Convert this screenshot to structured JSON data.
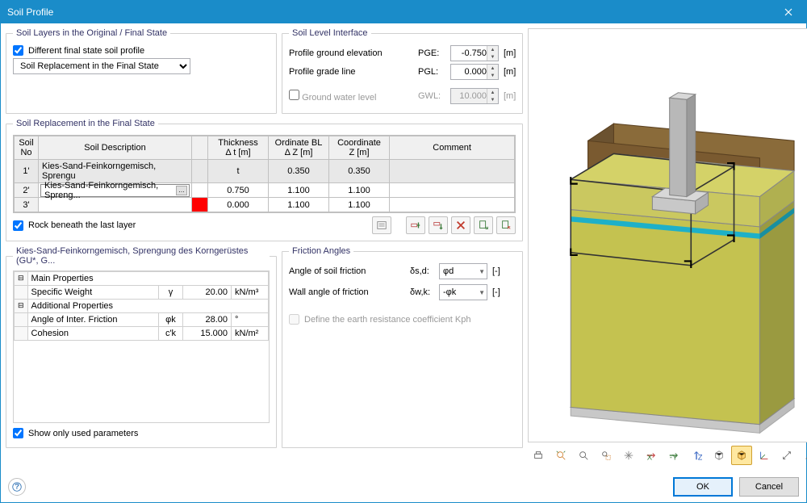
{
  "window": {
    "title": "Soil Profile"
  },
  "soil_layers_group": {
    "legend": "Soil Layers in the Original / Final State",
    "different_checkbox": "Different final state soil profile",
    "different_checked": true,
    "combo_value": "Soil Replacement in the Final State"
  },
  "soil_level_group": {
    "legend": "Soil Level Interface",
    "pge_label": "Profile ground elevation",
    "pge_abbr": "PGE:",
    "pge_value": "-0.750",
    "pge_unit": "[m]",
    "pgl_label": "Profile grade line",
    "pgl_abbr": "PGL:",
    "pgl_value": "0.000",
    "pgl_unit": "[m]",
    "gwl_checkbox": "Ground water level",
    "gwl_checked": false,
    "gwl_abbr": "GWL:",
    "gwl_value": "10.000",
    "gwl_unit": "[m]"
  },
  "replacement_group": {
    "legend": "Soil Replacement in the Final State",
    "headers": {
      "no_l1": "Soil",
      "no_l2": "No",
      "desc": "Soil Description",
      "thick_l1": "Thickness",
      "thick_l2": "Δ t [m]",
      "ord_l1": "Ordinate BL",
      "ord_l2": "Δ Z [m]",
      "coord_l1": "Coordinate",
      "coord_l2": "Z [m]",
      "comment": "Comment"
    },
    "rows": [
      {
        "no": "1'",
        "desc": "Kies-Sand-Feinkorngemisch, Sprengu",
        "color": "",
        "thick": "t",
        "ord": "0.350",
        "coord": "0.350",
        "comment": "",
        "selected": true
      },
      {
        "no": "2'",
        "desc": "Kies-Sand-Feinkorngemisch, Spreng...",
        "color": "",
        "thick": "0.750",
        "ord": "1.100",
        "coord": "1.100",
        "comment": "",
        "editing": true
      },
      {
        "no": "3'",
        "desc": "",
        "color": "#ff0000",
        "thick": "0.000",
        "ord": "1.100",
        "coord": "1.100",
        "comment": ""
      }
    ],
    "rock_checkbox": "Rock beneath the last layer",
    "rock_checked": true
  },
  "props_group": {
    "legend": "Kies-Sand-Feinkorngemisch, Sprengung des Korngerüstes (GU*, G...",
    "main_hdr": "Main Properties",
    "specific_weight": {
      "label": "Specific Weight",
      "sym": "γ",
      "val": "20.00",
      "unit": "kN/m³"
    },
    "add_hdr": "Additional Properties",
    "angle_friction": {
      "label": "Angle of Inter. Friction",
      "sym": "φk",
      "val": "28.00",
      "unit": "°"
    },
    "cohesion": {
      "label": "Cohesion",
      "sym": "c'k",
      "val": "15.000",
      "unit": "kN/m²"
    },
    "show_only_checkbox": "Show only used parameters",
    "show_only_checked": true
  },
  "friction_group": {
    "legend": "Friction Angles",
    "soil_friction": {
      "label": "Angle of soil friction",
      "sym": "δs,d:",
      "val": "φd",
      "unit": "[-]"
    },
    "wall_friction": {
      "label": "Wall angle of friction",
      "sym": "δw,k:",
      "val": "-φk",
      "unit": "[-]"
    },
    "kph_checkbox": "Define the earth resistance coefficient Kph",
    "kph_checked": false
  },
  "viz": {
    "soil_top_color": "#8a6b3a",
    "soil_top_side": "#6b5230",
    "soil_main_color": "#c4c250",
    "soil_main_side": "#9a9a40",
    "water_color": "#1eb0c8",
    "concrete_color": "#b8b8b8",
    "concrete_side": "#9a9a9a",
    "base_color": "#d8d8d8"
  },
  "footer": {
    "ok": "OK",
    "cancel": "Cancel"
  }
}
